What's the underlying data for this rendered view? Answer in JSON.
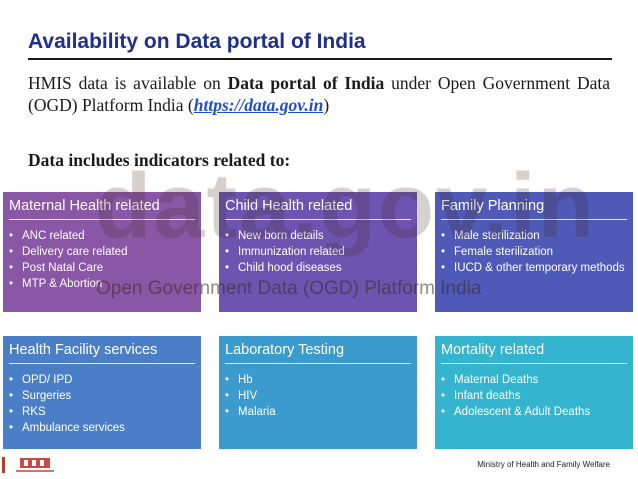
{
  "slide": {
    "title": "Availability on Data portal of India",
    "intro": {
      "prefix": "HMIS data is available on ",
      "portal": "Data portal of India",
      "middle": " under Open Government Data (OGD) Platform India (",
      "url": "https://data.gov.in",
      "suffix": ")"
    },
    "includes_heading": "Data includes indicators related to:"
  },
  "watermark": {
    "brand": "data.gov.in",
    "subtitle": "Open Government Data (OGD) Platform India"
  },
  "cards": [
    {
      "title": "Maternal Health related",
      "items": [
        "ANC related",
        "Delivery care related",
        "Post Natal Care",
        "MTP & Abortion"
      ]
    },
    {
      "title": "Child Health related",
      "items": [
        "New born details",
        "Immunization related",
        "Child hood diseases"
      ]
    },
    {
      "title": "Family Planning",
      "items": [
        "Male sterilization",
        "Female sterilization",
        "IUCD & other temporary methods"
      ]
    },
    {
      "title": "Health Facility services",
      "items": [
        "OPD/ IPD",
        "Surgeries",
        "RKS",
        "Ambulance services"
      ]
    },
    {
      "title": "Laboratory Testing",
      "items": [
        "Hb",
        "HIV",
        "Malaria"
      ]
    },
    {
      "title": "Mortality related",
      "items": [
        "Maternal Deaths",
        "Infant deaths",
        "Adolescent & Adult Deaths"
      ]
    }
  ],
  "footer": {
    "ministry": "Ministry of Health and Family Welfare"
  },
  "colors": {
    "title": "#1f2f8e",
    "link": "#1f4fd1",
    "card_maternal": "#8a56a6",
    "card_child": "#6e54b0",
    "card_family": "#4f5ab8",
    "card_facility": "#4a7fc8",
    "card_lab": "#3b9bcf",
    "card_mortality": "#34b4cf"
  }
}
